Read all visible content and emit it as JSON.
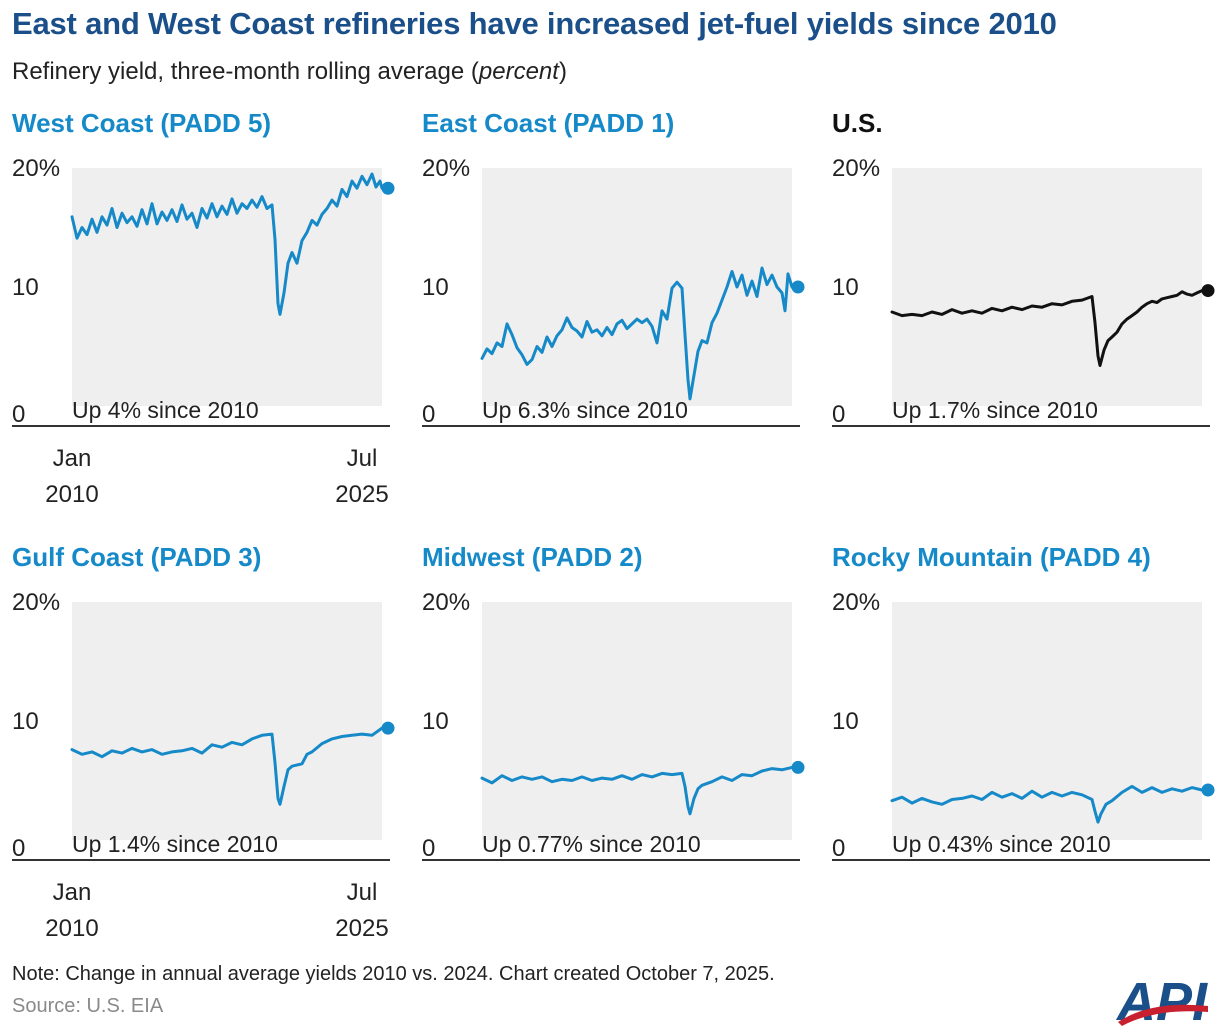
{
  "title": "East and West Coast refineries have increased jet-fuel yields since 2010",
  "subtitle_prefix": "Refinery yield, three-month rolling average (",
  "subtitle_unit": "percent",
  "subtitle_suffix": ")",
  "note": "Note: Change in annual average yields 2010 vs. 2024. Chart created October 7, 2025.",
  "source": "Source: U.S. EIA",
  "logo_text": "API",
  "colors": {
    "series": "#1689c8",
    "us": "#111111",
    "title": "#1b4f8a",
    "fill": "#efefef",
    "axis": "#333333"
  },
  "chart_data": [
    {
      "type": "area",
      "title": "West Coast (PADD 5)",
      "annotation": "Up 4% since 2010",
      "y_ticks": [
        "0",
        "10",
        "20%"
      ],
      "ylim": [
        0,
        20
      ],
      "x_labels": [
        [
          "Jan",
          "2010"
        ],
        [
          "Jul",
          "2025"
        ]
      ],
      "x_start": "2010-01",
      "x_end": "2025-07",
      "points": [
        [
          2010.0,
          15.9
        ],
        [
          2010.25,
          14.1
        ],
        [
          2010.5,
          15.0
        ],
        [
          2010.75,
          14.4
        ],
        [
          2011.0,
          15.7
        ],
        [
          2011.25,
          14.6
        ],
        [
          2011.5,
          15.9
        ],
        [
          2011.75,
          15.2
        ],
        [
          2012.0,
          16.6
        ],
        [
          2012.25,
          15.0
        ],
        [
          2012.5,
          16.2
        ],
        [
          2012.75,
          15.4
        ],
        [
          2013.0,
          15.9
        ],
        [
          2013.25,
          15.1
        ],
        [
          2013.5,
          16.5
        ],
        [
          2013.75,
          15.3
        ],
        [
          2014.0,
          17.0
        ],
        [
          2014.25,
          15.3
        ],
        [
          2014.5,
          16.3
        ],
        [
          2014.75,
          15.6
        ],
        [
          2015.0,
          16.5
        ],
        [
          2015.25,
          15.5
        ],
        [
          2015.5,
          16.9
        ],
        [
          2015.75,
          15.7
        ],
        [
          2016.0,
          16.2
        ],
        [
          2016.25,
          15.0
        ],
        [
          2016.5,
          16.6
        ],
        [
          2016.75,
          15.8
        ],
        [
          2017.0,
          17.0
        ],
        [
          2017.25,
          15.9
        ],
        [
          2017.5,
          16.8
        ],
        [
          2017.75,
          16.1
        ],
        [
          2018.0,
          17.4
        ],
        [
          2018.25,
          16.2
        ],
        [
          2018.5,
          17.0
        ],
        [
          2018.75,
          16.6
        ],
        [
          2019.0,
          17.3
        ],
        [
          2019.25,
          16.7
        ],
        [
          2019.5,
          17.6
        ],
        [
          2019.75,
          16.6
        ],
        [
          2020.0,
          16.9
        ],
        [
          2020.15,
          14.0
        ],
        [
          2020.3,
          8.6
        ],
        [
          2020.4,
          7.7
        ],
        [
          2020.6,
          9.5
        ],
        [
          2020.8,
          12.0
        ],
        [
          2021.0,
          12.9
        ],
        [
          2021.25,
          12.0
        ],
        [
          2021.5,
          13.9
        ],
        [
          2021.75,
          14.6
        ],
        [
          2022.0,
          15.6
        ],
        [
          2022.25,
          15.2
        ],
        [
          2022.5,
          16.1
        ],
        [
          2022.75,
          16.6
        ],
        [
          2023.0,
          17.3
        ],
        [
          2023.25,
          16.8
        ],
        [
          2023.5,
          18.2
        ],
        [
          2023.75,
          17.6
        ],
        [
          2024.0,
          18.9
        ],
        [
          2024.25,
          18.3
        ],
        [
          2024.5,
          19.3
        ],
        [
          2024.75,
          18.6
        ],
        [
          2025.0,
          19.5
        ],
        [
          2025.2,
          18.4
        ],
        [
          2025.4,
          18.9
        ],
        [
          2025.5,
          18.3
        ]
      ]
    },
    {
      "type": "area",
      "title": "East Coast (PADD 1)",
      "annotation": "Up 6.3% since 2010",
      "y_ticks": [
        "0",
        "10",
        "20%"
      ],
      "ylim": [
        0,
        20
      ],
      "x_labels": [],
      "points": [
        [
          2010.0,
          4.0
        ],
        [
          2010.25,
          4.8
        ],
        [
          2010.5,
          4.4
        ],
        [
          2010.75,
          5.3
        ],
        [
          2011.0,
          5.0
        ],
        [
          2011.25,
          6.9
        ],
        [
          2011.5,
          6.0
        ],
        [
          2011.75,
          4.9
        ],
        [
          2012.0,
          4.3
        ],
        [
          2012.25,
          3.5
        ],
        [
          2012.5,
          3.9
        ],
        [
          2012.75,
          5.0
        ],
        [
          2013.0,
          4.5
        ],
        [
          2013.25,
          5.8
        ],
        [
          2013.5,
          5.0
        ],
        [
          2013.75,
          5.9
        ],
        [
          2014.0,
          6.4
        ],
        [
          2014.25,
          7.4
        ],
        [
          2014.5,
          6.6
        ],
        [
          2014.75,
          6.3
        ],
        [
          2015.0,
          5.8
        ],
        [
          2015.25,
          7.1
        ],
        [
          2015.5,
          6.2
        ],
        [
          2015.75,
          6.4
        ],
        [
          2016.0,
          5.9
        ],
        [
          2016.25,
          6.6
        ],
        [
          2016.5,
          6.0
        ],
        [
          2016.75,
          6.9
        ],
        [
          2017.0,
          7.2
        ],
        [
          2017.25,
          6.5
        ],
        [
          2017.5,
          6.9
        ],
        [
          2017.75,
          7.3
        ],
        [
          2018.0,
          7.0
        ],
        [
          2018.25,
          7.3
        ],
        [
          2018.5,
          6.7
        ],
        [
          2018.75,
          5.3
        ],
        [
          2019.0,
          8.0
        ],
        [
          2019.25,
          7.3
        ],
        [
          2019.5,
          9.9
        ],
        [
          2019.75,
          10.4
        ],
        [
          2020.0,
          9.9
        ],
        [
          2020.15,
          6.0
        ],
        [
          2020.3,
          2.2
        ],
        [
          2020.4,
          0.6
        ],
        [
          2020.6,
          2.6
        ],
        [
          2020.8,
          4.6
        ],
        [
          2021.0,
          5.5
        ],
        [
          2021.25,
          5.3
        ],
        [
          2021.5,
          7.0
        ],
        [
          2021.75,
          7.8
        ],
        [
          2022.0,
          8.9
        ],
        [
          2022.25,
          10.0
        ],
        [
          2022.5,
          11.3
        ],
        [
          2022.75,
          10.0
        ],
        [
          2023.0,
          11.0
        ],
        [
          2023.25,
          9.3
        ],
        [
          2023.5,
          10.5
        ],
        [
          2023.75,
          9.2
        ],
        [
          2024.0,
          11.6
        ],
        [
          2024.25,
          10.2
        ],
        [
          2024.5,
          11.0
        ],
        [
          2024.75,
          10.0
        ],
        [
          2025.0,
          9.5
        ],
        [
          2025.15,
          8.0
        ],
        [
          2025.3,
          11.1
        ],
        [
          2025.5,
          10.0
        ]
      ]
    },
    {
      "type": "area",
      "title": "U.S.",
      "annotation": "Up 1.7% since 2010",
      "y_ticks": [
        "0",
        "10",
        "20%"
      ],
      "ylim": [
        0,
        20
      ],
      "x_labels": [],
      "points": [
        [
          2010.0,
          7.9
        ],
        [
          2010.5,
          7.6
        ],
        [
          2011.0,
          7.7
        ],
        [
          2011.5,
          7.6
        ],
        [
          2012.0,
          7.9
        ],
        [
          2012.5,
          7.7
        ],
        [
          2013.0,
          8.1
        ],
        [
          2013.5,
          7.8
        ],
        [
          2014.0,
          8.0
        ],
        [
          2014.5,
          7.8
        ],
        [
          2015.0,
          8.2
        ],
        [
          2015.5,
          8.0
        ],
        [
          2016.0,
          8.3
        ],
        [
          2016.5,
          8.1
        ],
        [
          2017.0,
          8.4
        ],
        [
          2017.5,
          8.3
        ],
        [
          2018.0,
          8.6
        ],
        [
          2018.5,
          8.5
        ],
        [
          2019.0,
          8.8
        ],
        [
          2019.5,
          8.9
        ],
        [
          2020.0,
          9.2
        ],
        [
          2020.15,
          7.0
        ],
        [
          2020.3,
          4.2
        ],
        [
          2020.4,
          3.4
        ],
        [
          2020.6,
          4.7
        ],
        [
          2020.8,
          5.5
        ],
        [
          2021.0,
          5.8
        ],
        [
          2021.25,
          6.2
        ],
        [
          2021.5,
          6.9
        ],
        [
          2021.75,
          7.3
        ],
        [
          2022.0,
          7.6
        ],
        [
          2022.25,
          7.9
        ],
        [
          2022.5,
          8.3
        ],
        [
          2022.75,
          8.6
        ],
        [
          2023.0,
          8.8
        ],
        [
          2023.25,
          8.7
        ],
        [
          2023.5,
          9.0
        ],
        [
          2023.75,
          9.1
        ],
        [
          2024.0,
          9.2
        ],
        [
          2024.25,
          9.3
        ],
        [
          2024.5,
          9.6
        ],
        [
          2024.75,
          9.4
        ],
        [
          2025.0,
          9.3
        ],
        [
          2025.25,
          9.5
        ],
        [
          2025.5,
          9.7
        ]
      ]
    },
    {
      "type": "area",
      "title": "Gulf Coast (PADD 3)",
      "annotation": "Up 1.4% since 2010",
      "y_ticks": [
        "0",
        "10",
        "20%"
      ],
      "ylim": [
        0,
        20
      ],
      "x_labels": [
        [
          "Jan",
          "2010"
        ],
        [
          "Jul",
          "2025"
        ]
      ],
      "x_start": "2010-01",
      "x_end": "2025-07",
      "points": [
        [
          2010.0,
          7.6
        ],
        [
          2010.5,
          7.2
        ],
        [
          2011.0,
          7.4
        ],
        [
          2011.5,
          7.0
        ],
        [
          2012.0,
          7.5
        ],
        [
          2012.5,
          7.3
        ],
        [
          2013.0,
          7.7
        ],
        [
          2013.5,
          7.4
        ],
        [
          2014.0,
          7.6
        ],
        [
          2014.5,
          7.2
        ],
        [
          2015.0,
          7.4
        ],
        [
          2015.5,
          7.5
        ],
        [
          2016.0,
          7.7
        ],
        [
          2016.5,
          7.3
        ],
        [
          2017.0,
          8.0
        ],
        [
          2017.5,
          7.8
        ],
        [
          2018.0,
          8.2
        ],
        [
          2018.5,
          8.0
        ],
        [
          2019.0,
          8.5
        ],
        [
          2019.5,
          8.8
        ],
        [
          2020.0,
          8.9
        ],
        [
          2020.15,
          6.5
        ],
        [
          2020.3,
          3.5
        ],
        [
          2020.4,
          3.0
        ],
        [
          2020.6,
          4.5
        ],
        [
          2020.8,
          5.9
        ],
        [
          2021.0,
          6.2
        ],
        [
          2021.5,
          6.4
        ],
        [
          2021.75,
          7.2
        ],
        [
          2022.0,
          7.4
        ],
        [
          2022.5,
          8.1
        ],
        [
          2023.0,
          8.5
        ],
        [
          2023.5,
          8.7
        ],
        [
          2024.0,
          8.8
        ],
        [
          2024.5,
          8.9
        ],
        [
          2025.0,
          8.8
        ],
        [
          2025.5,
          9.4
        ]
      ]
    },
    {
      "type": "area",
      "title": "Midwest (PADD 2)",
      "annotation": "Up 0.77% since 2010",
      "y_ticks": [
        "0",
        "10",
        "20%"
      ],
      "ylim": [
        0,
        20
      ],
      "x_labels": [],
      "points": [
        [
          2010.0,
          5.2
        ],
        [
          2010.5,
          4.8
        ],
        [
          2011.0,
          5.4
        ],
        [
          2011.5,
          5.0
        ],
        [
          2012.0,
          5.3
        ],
        [
          2012.5,
          5.1
        ],
        [
          2013.0,
          5.3
        ],
        [
          2013.5,
          4.9
        ],
        [
          2014.0,
          5.1
        ],
        [
          2014.5,
          5.0
        ],
        [
          2015.0,
          5.3
        ],
        [
          2015.5,
          5.0
        ],
        [
          2016.0,
          5.2
        ],
        [
          2016.5,
          5.1
        ],
        [
          2017.0,
          5.4
        ],
        [
          2017.5,
          5.1
        ],
        [
          2018.0,
          5.5
        ],
        [
          2018.5,
          5.3
        ],
        [
          2019.0,
          5.6
        ],
        [
          2019.5,
          5.5
        ],
        [
          2020.0,
          5.6
        ],
        [
          2020.15,
          4.5
        ],
        [
          2020.3,
          2.8
        ],
        [
          2020.4,
          2.2
        ],
        [
          2020.6,
          3.5
        ],
        [
          2020.8,
          4.3
        ],
        [
          2021.0,
          4.6
        ],
        [
          2021.5,
          4.9
        ],
        [
          2022.0,
          5.3
        ],
        [
          2022.5,
          5.0
        ],
        [
          2023.0,
          5.5
        ],
        [
          2023.5,
          5.4
        ],
        [
          2024.0,
          5.8
        ],
        [
          2024.5,
          6.0
        ],
        [
          2025.0,
          5.9
        ],
        [
          2025.5,
          6.1
        ]
      ]
    },
    {
      "type": "area",
      "title": "Rocky Mountain (PADD 4)",
      "annotation": "Up 0.43% since 2010",
      "y_ticks": [
        "0",
        "10",
        "20%"
      ],
      "ylim": [
        0,
        20
      ],
      "x_labels": [],
      "points": [
        [
          2010.0,
          3.3
        ],
        [
          2010.5,
          3.6
        ],
        [
          2011.0,
          3.1
        ],
        [
          2011.5,
          3.5
        ],
        [
          2012.0,
          3.2
        ],
        [
          2012.5,
          3.0
        ],
        [
          2013.0,
          3.4
        ],
        [
          2013.5,
          3.5
        ],
        [
          2014.0,
          3.7
        ],
        [
          2014.5,
          3.4
        ],
        [
          2015.0,
          4.0
        ],
        [
          2015.5,
          3.6
        ],
        [
          2016.0,
          3.9
        ],
        [
          2016.5,
          3.5
        ],
        [
          2017.0,
          4.1
        ],
        [
          2017.5,
          3.6
        ],
        [
          2018.0,
          4.0
        ],
        [
          2018.5,
          3.7
        ],
        [
          2019.0,
          4.0
        ],
        [
          2019.5,
          3.8
        ],
        [
          2020.0,
          3.4
        ],
        [
          2020.15,
          2.4
        ],
        [
          2020.3,
          1.5
        ],
        [
          2020.45,
          2.2
        ],
        [
          2020.7,
          3.0
        ],
        [
          2021.0,
          3.3
        ],
        [
          2021.5,
          4.0
        ],
        [
          2022.0,
          4.5
        ],
        [
          2022.5,
          4.0
        ],
        [
          2023.0,
          4.4
        ],
        [
          2023.5,
          4.0
        ],
        [
          2024.0,
          4.3
        ],
        [
          2024.5,
          4.1
        ],
        [
          2025.0,
          4.4
        ],
        [
          2025.5,
          4.2
        ]
      ]
    }
  ]
}
